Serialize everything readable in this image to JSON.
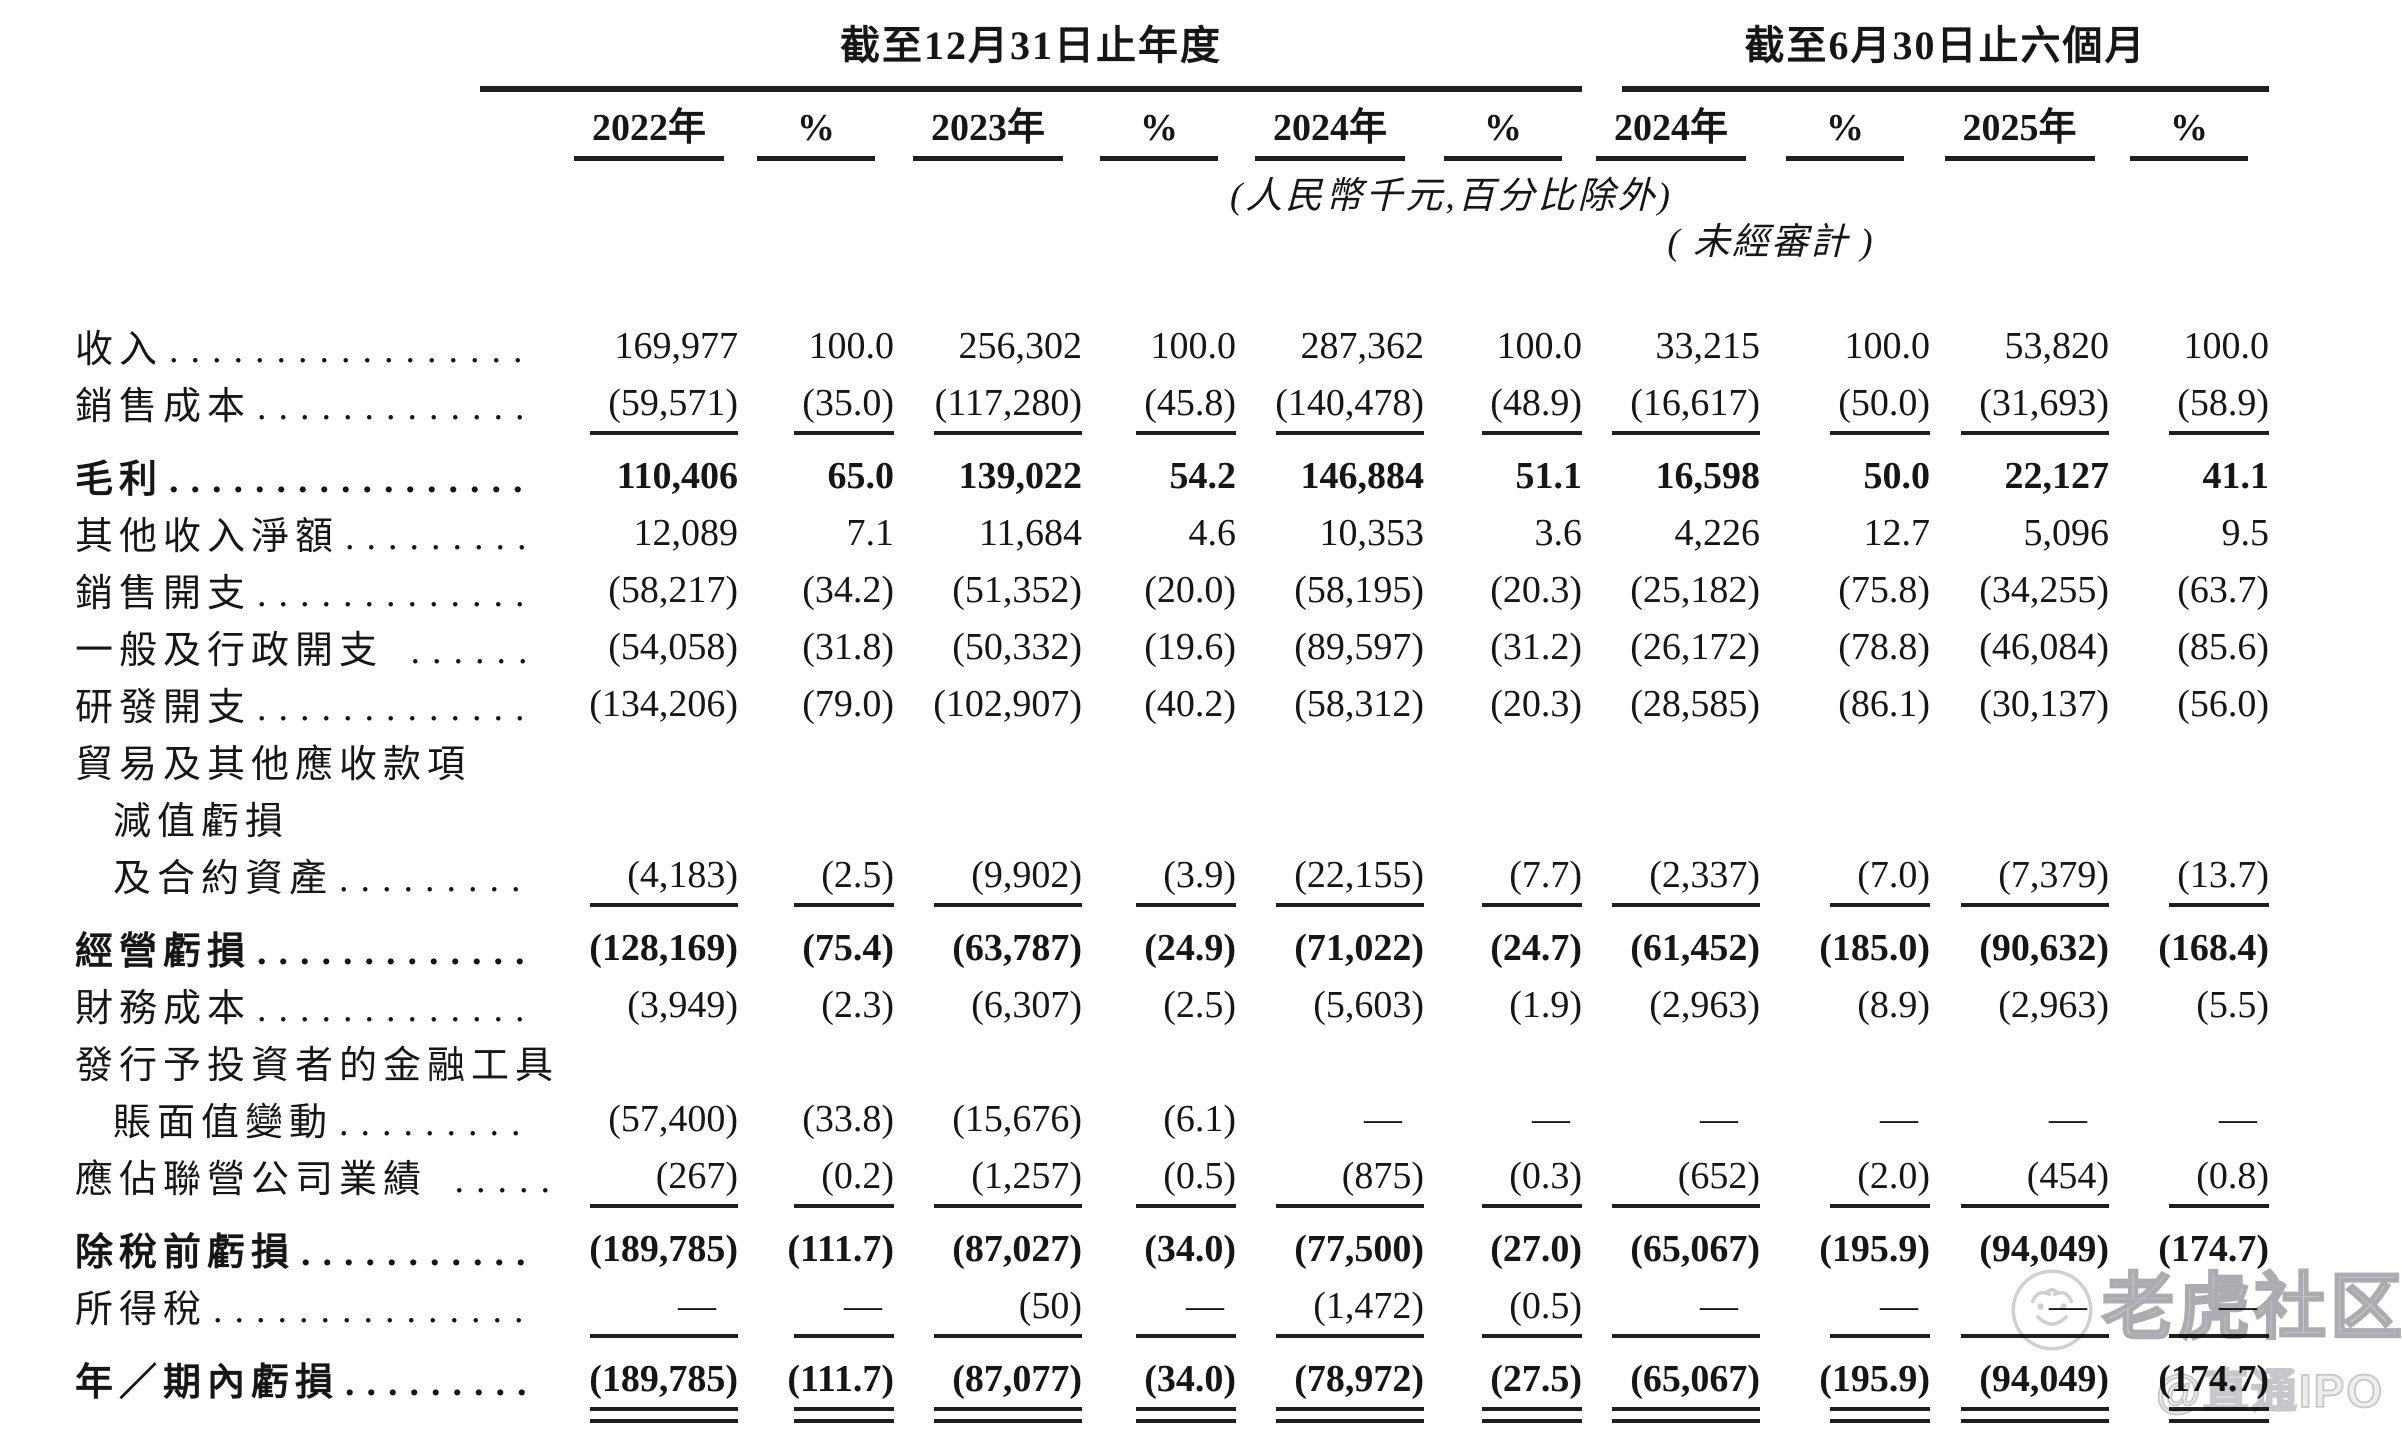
{
  "page": {
    "background": "#ffffff",
    "text_color": "#161616",
    "rule_color": "#1f1f1f"
  },
  "table": {
    "group_headers": [
      {
        "label": "截至12月31日止年度",
        "span": 6
      },
      {
        "label": "截至6月30日止六個月",
        "span": 4
      }
    ],
    "column_headers": [
      "2022年",
      "%",
      "2023年",
      "%",
      "2024年",
      "%",
      "2024年",
      "%",
      "2025年",
      "%"
    ],
    "unit_note": "(人民幣千元,百分比除外)",
    "unaudited_note": "( 未經審計 )",
    "rows": [
      {
        "lines": [
          {
            "text": "收入",
            "indent": 0
          }
        ],
        "leader": ".................",
        "bold": false,
        "rule": "",
        "values": [
          "169,977",
          "100.0",
          "256,302",
          "100.0",
          "287,362",
          "100.0",
          "33,215",
          "100.0",
          "53,820",
          "100.0"
        ]
      },
      {
        "lines": [
          {
            "text": "銷售成本",
            "indent": 0
          }
        ],
        "leader": ".............",
        "bold": false,
        "rule": "single",
        "values": [
          "(59,571)",
          "(35.0)",
          "(117,280)",
          "(45.8)",
          "(140,478)",
          "(48.9)",
          "(16,617)",
          "(50.0)",
          "(31,693)",
          "(58.9)"
        ]
      },
      {
        "lines": [
          {
            "text": "毛利",
            "indent": 0
          }
        ],
        "leader": ".................",
        "bold": true,
        "rule": "",
        "values": [
          "110,406",
          "65.0",
          "139,022",
          "54.2",
          "146,884",
          "51.1",
          "16,598",
          "50.0",
          "22,127",
          "41.1"
        ]
      },
      {
        "lines": [
          {
            "text": "其他收入淨額",
            "indent": 0
          }
        ],
        "leader": ".........",
        "bold": false,
        "rule": "",
        "values": [
          "12,089",
          "7.1",
          "11,684",
          "4.6",
          "10,353",
          "3.6",
          "4,226",
          "12.7",
          "5,096",
          "9.5"
        ]
      },
      {
        "lines": [
          {
            "text": "銷售開支",
            "indent": 0
          }
        ],
        "leader": ".............",
        "bold": false,
        "rule": "",
        "values": [
          "(58,217)",
          "(34.2)",
          "(51,352)",
          "(20.0)",
          "(58,195)",
          "(20.3)",
          "(25,182)",
          "(75.8)",
          "(34,255)",
          "(63.7)"
        ]
      },
      {
        "lines": [
          {
            "text": "一般及行政開支",
            "indent": 0
          }
        ],
        "leader": " ......",
        "bold": false,
        "rule": "",
        "values": [
          "(54,058)",
          "(31.8)",
          "(50,332)",
          "(19.6)",
          "(89,597)",
          "(31.2)",
          "(26,172)",
          "(78.8)",
          "(46,084)",
          "(85.6)"
        ]
      },
      {
        "lines": [
          {
            "text": "研發開支",
            "indent": 0
          }
        ],
        "leader": ".............",
        "bold": false,
        "rule": "",
        "values": [
          "(134,206)",
          "(79.0)",
          "(102,907)",
          "(40.2)",
          "(58,312)",
          "(20.3)",
          "(28,585)",
          "(86.1)",
          "(30,137)",
          "(56.0)"
        ]
      },
      {
        "lines": [
          {
            "text": "貿易及其他應收款項",
            "indent": 0
          },
          {
            "text": "減值虧損",
            "indent": 1
          },
          {
            "text": "及合約資產",
            "indent": 1
          }
        ],
        "leader": ".........",
        "bold": false,
        "rule": "single",
        "values": [
          "(4,183)",
          "(2.5)",
          "(9,902)",
          "(3.9)",
          "(22,155)",
          "(7.7)",
          "(2,337)",
          "(7.0)",
          "(7,379)",
          "(13.7)"
        ]
      },
      {
        "lines": [
          {
            "text": "經營虧損",
            "indent": 0
          }
        ],
        "leader": ".............",
        "bold": true,
        "rule": "",
        "values": [
          "(128,169)",
          "(75.4)",
          "(63,787)",
          "(24.9)",
          "(71,022)",
          "(24.7)",
          "(61,452)",
          "(185.0)",
          "(90,632)",
          "(168.4)"
        ]
      },
      {
        "lines": [
          {
            "text": "財務成本",
            "indent": 0
          }
        ],
        "leader": ".............",
        "bold": false,
        "rule": "",
        "values": [
          "(3,949)",
          "(2.3)",
          "(6,307)",
          "(2.5)",
          "(5,603)",
          "(1.9)",
          "(2,963)",
          "(8.9)",
          "(2,963)",
          "(5.5)"
        ]
      },
      {
        "lines": [
          {
            "text": "發行予投資者的金融工具",
            "indent": 0
          },
          {
            "text": "賬面值變動",
            "indent": 1
          }
        ],
        "leader": ".........",
        "bold": false,
        "rule": "",
        "values": [
          "(57,400)",
          "(33.8)",
          "(15,676)",
          "(6.1)",
          "—",
          "—",
          "—",
          "—",
          "—",
          "—"
        ]
      },
      {
        "lines": [
          {
            "text": "應佔聯營公司業績",
            "indent": 0
          }
        ],
        "leader": " .....",
        "bold": false,
        "rule": "single",
        "values": [
          "(267)",
          "(0.2)",
          "(1,257)",
          "(0.5)",
          "(875)",
          "(0.3)",
          "(652)",
          "(2.0)",
          "(454)",
          "(0.8)"
        ]
      },
      {
        "lines": [
          {
            "text": "除稅前虧損",
            "indent": 0
          }
        ],
        "leader": "...........",
        "bold": true,
        "rule": "",
        "values": [
          "(189,785)",
          "(111.7)",
          "(87,027)",
          "(34.0)",
          "(77,500)",
          "(27.0)",
          "(65,067)",
          "(195.9)",
          "(94,049)",
          "(174.7)"
        ]
      },
      {
        "lines": [
          {
            "text": "所得稅",
            "indent": 0
          }
        ],
        "leader": "...............",
        "bold": false,
        "rule": "single",
        "values": [
          "—",
          "—",
          "(50)",
          "—",
          "(1,472)",
          "(0.5)",
          "—",
          "—",
          "—",
          "—"
        ]
      },
      {
        "lines": [
          {
            "text": "年／期內虧損",
            "indent": 0
          }
        ],
        "leader": ".........",
        "bold": true,
        "rule": "double",
        "values": [
          "(189,785)",
          "(111.7)",
          "(87,077)",
          "(34.0)",
          "(78,972)",
          "(27.5)",
          "(65,067)",
          "(195.9)",
          "(94,049)",
          "(174.7)"
        ]
      }
    ]
  },
  "watermarks": {
    "community_text": "老虎社区",
    "ipo_text": "@直通IPO"
  }
}
